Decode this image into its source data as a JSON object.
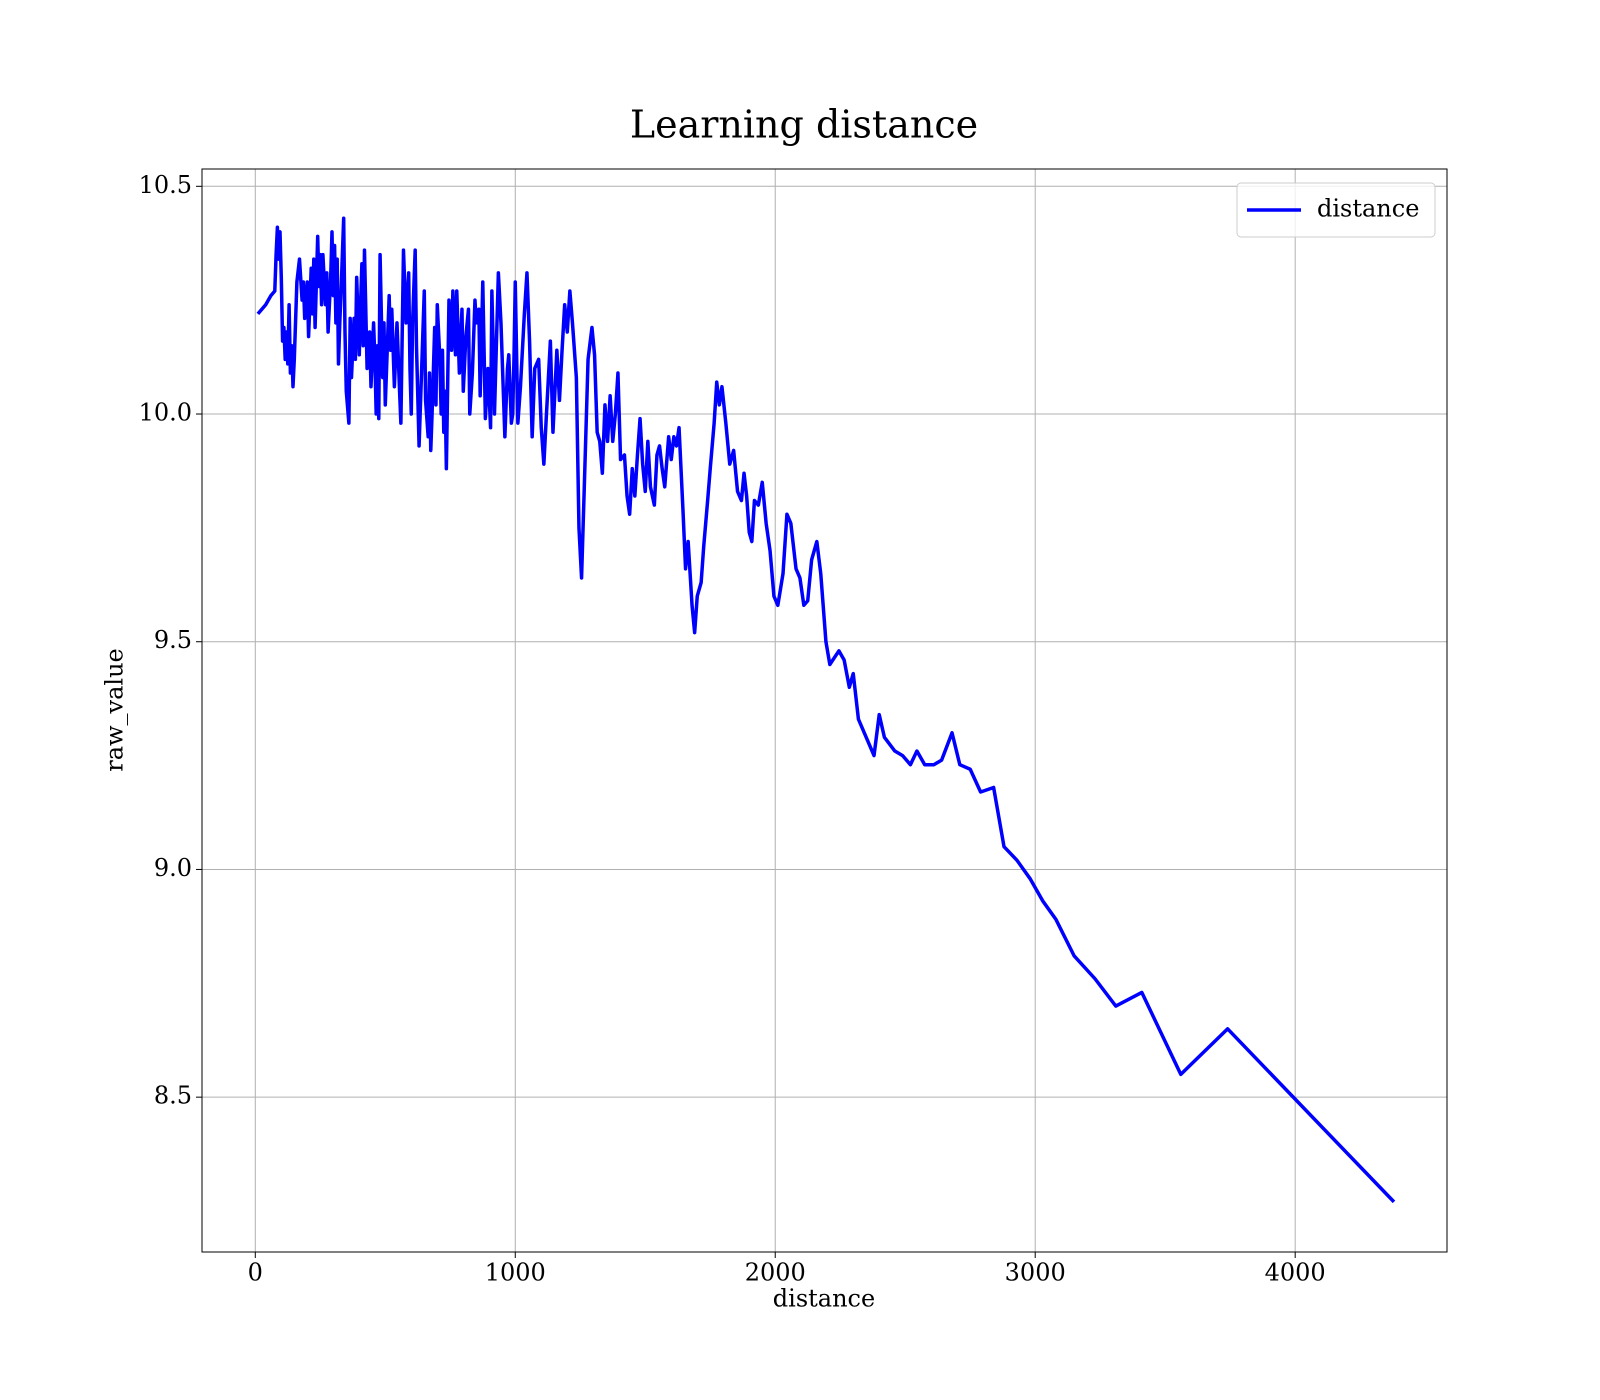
{
  "chart_data": {
    "type": "line",
    "title": "Learning distance",
    "xlabel": "distance",
    "ylabel": "raw_value",
    "x": [
      10,
      40,
      60,
      75,
      80,
      85,
      90,
      95,
      100,
      105,
      110,
      115,
      120,
      125,
      130,
      135,
      140,
      145,
      150,
      160,
      170,
      180,
      185,
      190,
      200,
      205,
      215,
      220,
      225,
      230,
      240,
      245,
      250,
      255,
      260,
      270,
      275,
      280,
      290,
      295,
      300,
      305,
      310,
      315,
      320,
      325,
      330,
      335,
      340,
      345,
      350,
      360,
      365,
      370,
      380,
      385,
      390,
      400,
      405,
      410,
      415,
      420,
      430,
      440,
      445,
      455,
      460,
      465,
      470,
      475,
      480,
      490,
      495,
      500,
      505,
      515,
      520,
      525,
      535,
      545,
      555,
      560,
      570,
      580,
      590,
      595,
      600,
      605,
      615,
      620,
      630,
      640,
      650,
      655,
      665,
      670,
      675,
      680,
      690,
      695,
      700,
      710,
      715,
      720,
      725,
      730,
      735,
      745,
      755,
      760,
      770,
      775,
      785,
      795,
      800,
      810,
      820,
      825,
      835,
      845,
      850,
      860,
      865,
      875,
      885,
      895,
      905,
      910,
      915,
      920,
      935,
      945,
      960,
      970,
      975,
      985,
      990,
      995,
      1000,
      1010,
      1020,
      1035,
      1045,
      1055,
      1065,
      1075,
      1090,
      1100,
      1110,
      1120,
      1135,
      1145,
      1160,
      1170,
      1180,
      1190,
      1200,
      1210,
      1220,
      1235,
      1245,
      1255,
      1265,
      1280,
      1295,
      1305,
      1315,
      1325,
      1335,
      1345,
      1355,
      1365,
      1375,
      1385,
      1395,
      1405,
      1420,
      1430,
      1440,
      1450,
      1460,
      1470,
      1480,
      1490,
      1500,
      1510,
      1520,
      1535,
      1545,
      1555,
      1565,
      1575,
      1590,
      1600,
      1610,
      1620,
      1630,
      1645,
      1655,
      1665,
      1680,
      1690,
      1700,
      1715,
      1725,
      1740,
      1750,
      1765,
      1775,
      1785,
      1795,
      1810,
      1825,
      1840,
      1855,
      1870,
      1880,
      1890,
      1900,
      1910,
      1920,
      1935,
      1950,
      1965,
      1980,
      1995,
      2010,
      2030,
      2045,
      2060,
      2080,
      2095,
      2110,
      2125,
      2140,
      2160,
      2175,
      2195,
      2210,
      2245,
      2265,
      2285,
      2300,
      2320,
      2380,
      2400,
      2420,
      2460,
      2490,
      2520,
      2545,
      2575,
      2610,
      2640,
      2680,
      2710,
      2750,
      2790,
      2840,
      2880,
      2930,
      2980,
      3030,
      3080,
      3150,
      3230,
      3310,
      3410,
      3560,
      3740,
      4380
    ],
    "series": [
      {
        "name": "distance",
        "color": "#0000ff",
        "values": [
          10.22,
          10.24,
          10.26,
          10.27,
          10.35,
          10.41,
          10.34,
          10.4,
          10.3,
          10.16,
          10.19,
          10.12,
          10.18,
          10.11,
          10.24,
          10.09,
          10.15,
          10.06,
          10.12,
          10.29,
          10.34,
          10.25,
          10.29,
          10.21,
          10.29,
          10.17,
          10.32,
          10.22,
          10.34,
          10.19,
          10.39,
          10.28,
          10.35,
          10.24,
          10.35,
          10.24,
          10.31,
          10.18,
          10.3,
          10.4,
          10.26,
          10.37,
          10.2,
          10.34,
          10.11,
          10.2,
          10.27,
          10.35,
          10.43,
          10.18,
          10.05,
          9.98,
          10.21,
          10.08,
          10.21,
          10.12,
          10.3,
          10.13,
          10.24,
          10.33,
          10.15,
          10.36,
          10.1,
          10.18,
          10.06,
          10.2,
          10.12,
          10.0,
          10.15,
          9.99,
          10.35,
          10.08,
          10.2,
          10.02,
          10.1,
          10.26,
          10.14,
          10.23,
          10.06,
          10.2,
          10.05,
          9.98,
          10.36,
          10.2,
          10.31,
          10.1,
          10.0,
          10.2,
          10.36,
          10.15,
          9.93,
          10.1,
          10.27,
          10.03,
          9.95,
          10.09,
          9.92,
          10.0,
          10.19,
          10.02,
          10.24,
          10.12,
          10.0,
          10.14,
          9.96,
          10.05,
          9.88,
          10.25,
          10.14,
          10.27,
          10.13,
          10.27,
          10.09,
          10.23,
          10.05,
          10.17,
          10.23,
          10.0,
          10.09,
          10.25,
          10.2,
          10.23,
          10.04,
          10.29,
          9.99,
          10.1,
          9.97,
          10.27,
          10.15,
          10.0,
          10.31,
          10.2,
          9.95,
          10.1,
          10.13,
          9.98,
          10.0,
          10.12,
          10.29,
          9.98,
          10.06,
          10.22,
          10.31,
          10.16,
          9.95,
          10.1,
          10.12,
          9.97,
          9.89,
          10.0,
          10.16,
          9.96,
          10.14,
          10.03,
          10.14,
          10.24,
          10.18,
          10.27,
          10.2,
          10.08,
          9.75,
          9.64,
          9.83,
          10.12,
          10.19,
          10.13,
          9.96,
          9.94,
          9.87,
          10.02,
          9.94,
          10.04,
          9.94,
          10.0,
          10.09,
          9.9,
          9.91,
          9.82,
          9.78,
          9.88,
          9.82,
          9.91,
          9.99,
          9.89,
          9.83,
          9.94,
          9.84,
          9.8,
          9.91,
          9.93,
          9.88,
          9.84,
          9.95,
          9.9,
          9.95,
          9.93,
          9.97,
          9.79,
          9.66,
          9.72,
          9.58,
          9.52,
          9.6,
          9.63,
          9.71,
          9.81,
          9.88,
          9.98,
          10.07,
          10.02,
          10.06,
          9.98,
          9.89,
          9.92,
          9.83,
          9.81,
          9.87,
          9.82,
          9.74,
          9.72,
          9.81,
          9.8,
          9.85,
          9.76,
          9.7,
          9.6,
          9.58,
          9.65,
          9.78,
          9.76,
          9.66,
          9.64,
          9.58,
          9.59,
          9.68,
          9.72,
          9.65,
          9.5,
          9.45,
          9.48,
          9.46,
          9.4,
          9.43,
          9.33,
          9.25,
          9.34,
          9.29,
          9.26,
          9.25,
          9.23,
          9.26,
          9.23,
          9.23,
          9.24,
          9.3,
          9.23,
          9.22,
          9.17,
          9.18,
          9.05,
          9.02,
          8.98,
          8.93,
          8.89,
          8.81,
          8.76,
          8.7,
          8.73,
          8.55,
          8.65,
          8.27
        ]
      }
    ],
    "xlim": [
      -205,
      4584
    ],
    "xticks": [
      0,
      1000,
      2000,
      3000,
      4000
    ],
    "ylim": [
      8.16,
      10.538
    ],
    "yticks": [
      8.5,
      {
        "value": 9,
        "label": "9.0"
      },
      9.5,
      {
        "value": 10,
        "label": "10.0"
      },
      10.5
    ],
    "grid": true,
    "legend": "upper right"
  }
}
